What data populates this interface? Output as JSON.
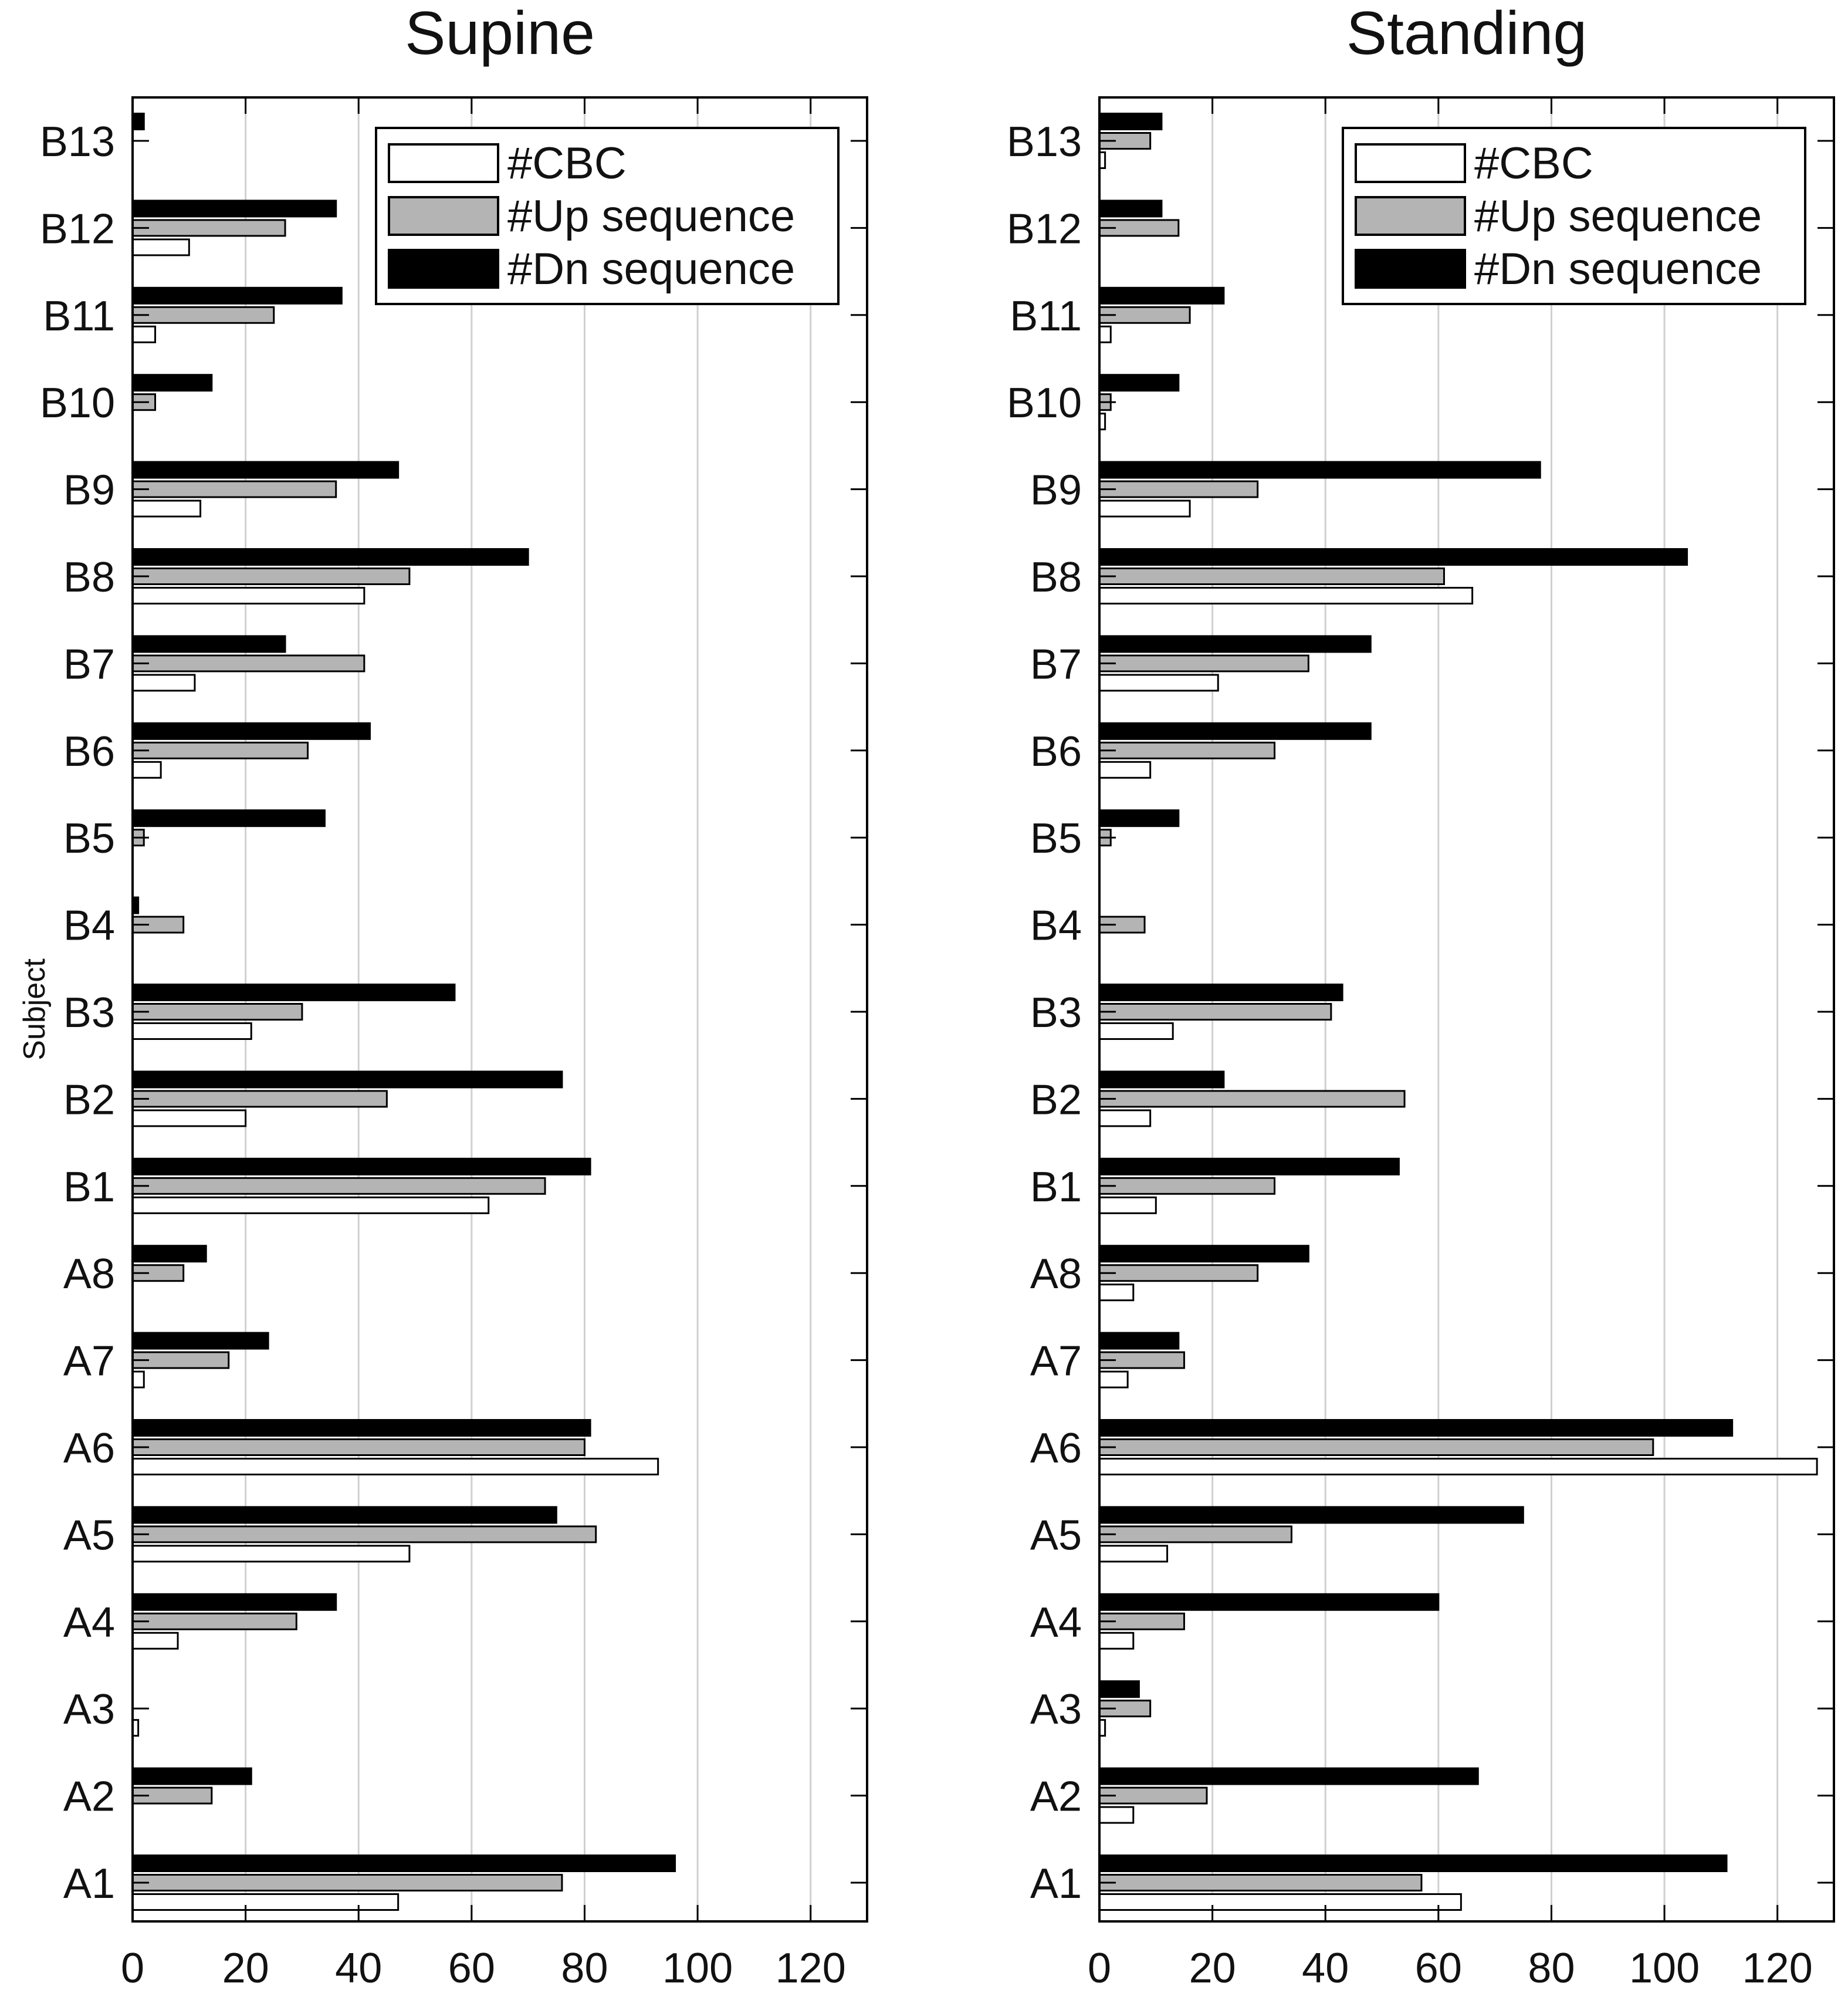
{
  "chart_data": [
    {
      "type": "bar",
      "orientation": "horizontal",
      "title": "Supine",
      "ylabel": "Subject",
      "xlabel": "",
      "xlim": [
        0,
        130
      ],
      "xticks": [
        0,
        20,
        40,
        60,
        80,
        100,
        120
      ],
      "grid": "vertical",
      "legend": "top-right",
      "categories": [
        "A1",
        "A2",
        "A3",
        "A4",
        "A5",
        "A6",
        "A7",
        "A8",
        "B1",
        "B2",
        "B3",
        "B4",
        "B5",
        "B6",
        "B7",
        "B8",
        "B9",
        "B10",
        "B11",
        "B12",
        "B13"
      ],
      "series": [
        {
          "name": "#CBC",
          "color": "#ffffff",
          "values": [
            47,
            0,
            1,
            8,
            49,
            93,
            2,
            0,
            63,
            20,
            21,
            0,
            0,
            5,
            11,
            41,
            12,
            0,
            4,
            10,
            0
          ]
        },
        {
          "name": "#Up sequence",
          "color": "#b4b4b4",
          "values": [
            76,
            14,
            0,
            29,
            82,
            80,
            17,
            9,
            73,
            45,
            30,
            9,
            2,
            31,
            41,
            49,
            36,
            4,
            25,
            27,
            0
          ]
        },
        {
          "name": "#Dn sequence",
          "color": "#000000",
          "values": [
            96,
            21,
            0,
            36,
            75,
            81,
            24,
            13,
            81,
            76,
            57,
            1,
            34,
            42,
            27,
            70,
            47,
            14,
            37,
            36,
            2
          ]
        }
      ]
    },
    {
      "type": "bar",
      "orientation": "horizontal",
      "title": "Standing",
      "ylabel": "",
      "xlabel": "",
      "xlim": [
        0,
        130
      ],
      "xticks": [
        0,
        20,
        40,
        60,
        80,
        100,
        120
      ],
      "grid": "vertical",
      "legend": "top-right",
      "categories": [
        "A1",
        "A2",
        "A3",
        "A4",
        "A5",
        "A6",
        "A7",
        "A8",
        "B1",
        "B2",
        "B3",
        "B4",
        "B5",
        "B6",
        "B7",
        "B8",
        "B9",
        "B10",
        "B11",
        "B12",
        "B13"
      ],
      "series": [
        {
          "name": "#CBC",
          "color": "#ffffff",
          "values": [
            64,
            6,
            1,
            6,
            12,
            127,
            5,
            6,
            10,
            9,
            13,
            0,
            0,
            9,
            21,
            66,
            16,
            1,
            2,
            0,
            1
          ]
        },
        {
          "name": "#Up sequence",
          "color": "#b4b4b4",
          "values": [
            57,
            19,
            9,
            15,
            34,
            98,
            15,
            28,
            31,
            54,
            41,
            8,
            2,
            31,
            37,
            61,
            28,
            2,
            16,
            14,
            9
          ]
        },
        {
          "name": "#Dn sequence",
          "color": "#000000",
          "values": [
            111,
            67,
            7,
            60,
            75,
            112,
            14,
            37,
            53,
            22,
            43,
            0,
            14,
            48,
            48,
            104,
            78,
            14,
            22,
            11,
            11
          ]
        }
      ]
    }
  ]
}
